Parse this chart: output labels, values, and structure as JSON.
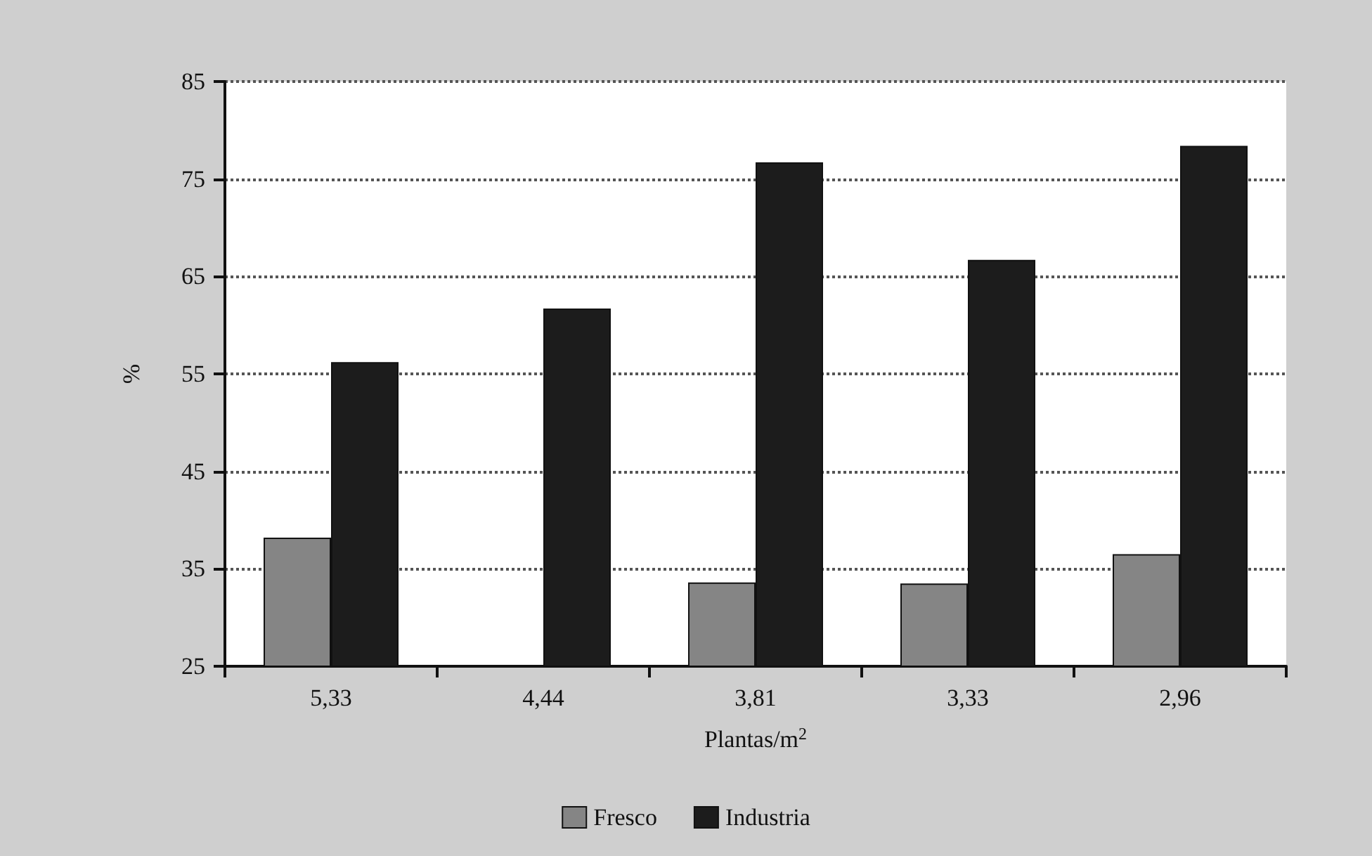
{
  "chart_data": {
    "type": "bar",
    "xlabel": "Plantas/m$^{2}$",
    "ylabel": "%",
    "categories": [
      "5,33",
      "4,44",
      "3,81",
      "3,33",
      "2,96"
    ],
    "series": [
      {
        "name": "Fresco",
        "color": "#858585",
        "values": [
          38.2,
          null,
          33.6,
          33.5,
          36.5
        ]
      },
      {
        "name": "Industria",
        "color": "#1c1c1c",
        "values": [
          56.2,
          61.7,
          76.7,
          66.7,
          78.4
        ]
      }
    ],
    "ylim": [
      25,
      85
    ],
    "yticks": [
      25,
      35,
      45,
      55,
      65,
      75,
      85
    ],
    "grid": "y",
    "legend": "bottom"
  }
}
